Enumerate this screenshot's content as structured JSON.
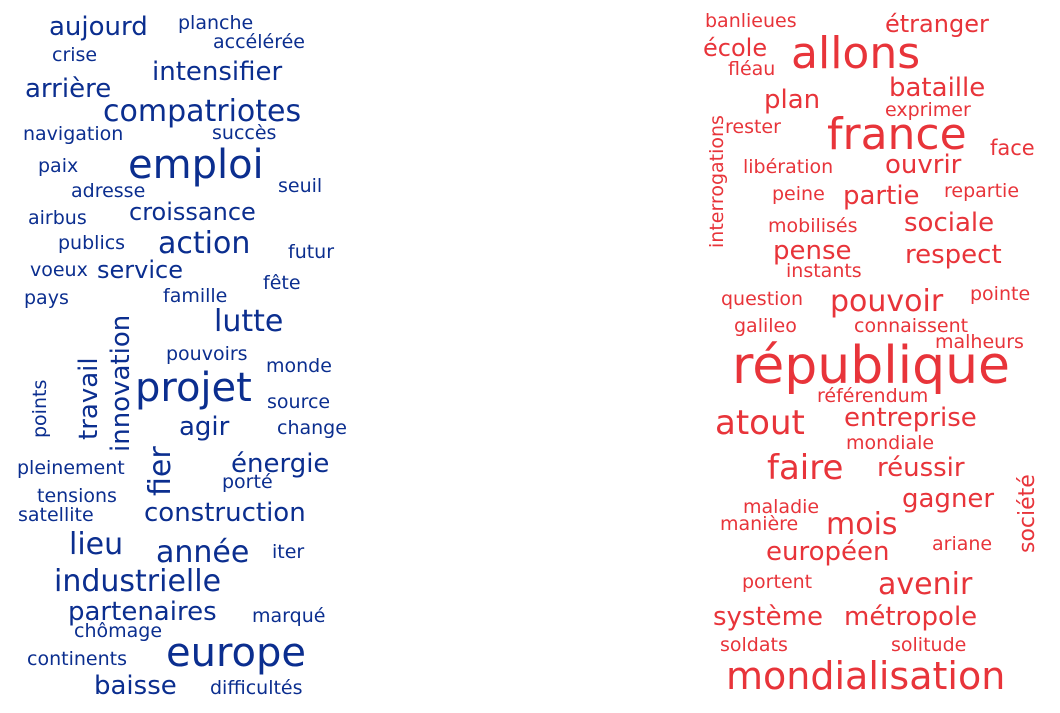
{
  "colors": {
    "left": "#0b2e8f",
    "right": "#e8343a"
  },
  "left_words": [
    {
      "text": "aujourd"
    },
    {
      "text": "planche"
    },
    {
      "text": "accélérée"
    },
    {
      "text": "crise"
    },
    {
      "text": "intensifier"
    },
    {
      "text": "arrière"
    },
    {
      "text": "compatriotes"
    },
    {
      "text": "navigation"
    },
    {
      "text": "succès"
    },
    {
      "text": "paix"
    },
    {
      "text": "emploi"
    },
    {
      "text": "adresse"
    },
    {
      "text": "seuil"
    },
    {
      "text": "airbus"
    },
    {
      "text": "croissance"
    },
    {
      "text": "publics"
    },
    {
      "text": "action"
    },
    {
      "text": "futur"
    },
    {
      "text": "voeux"
    },
    {
      "text": "service"
    },
    {
      "text": "fête"
    },
    {
      "text": "pays"
    },
    {
      "text": "famille"
    },
    {
      "text": "lutte"
    },
    {
      "text": "innovation"
    },
    {
      "text": "travail"
    },
    {
      "text": "points"
    },
    {
      "text": "pouvoirs"
    },
    {
      "text": "monde"
    },
    {
      "text": "projet"
    },
    {
      "text": "source"
    },
    {
      "text": "agir"
    },
    {
      "text": "change"
    },
    {
      "text": "fier"
    },
    {
      "text": "énergie"
    },
    {
      "text": "pleinement"
    },
    {
      "text": "porté"
    },
    {
      "text": "tensions"
    },
    {
      "text": "satellite"
    },
    {
      "text": "construction"
    },
    {
      "text": "lieu"
    },
    {
      "text": "année"
    },
    {
      "text": "iter"
    },
    {
      "text": "industrielle"
    },
    {
      "text": "partenaires"
    },
    {
      "text": "marqué"
    },
    {
      "text": "chômage"
    },
    {
      "text": "continents"
    },
    {
      "text": "europe"
    },
    {
      "text": "baisse"
    },
    {
      "text": "difficultés"
    }
  ],
  "right_words": [
    {
      "text": "banlieues"
    },
    {
      "text": "étranger"
    },
    {
      "text": "école"
    },
    {
      "text": "allons"
    },
    {
      "text": "fléau"
    },
    {
      "text": "bataille"
    },
    {
      "text": "plan"
    },
    {
      "text": "interrogations"
    },
    {
      "text": "exprimer"
    },
    {
      "text": "rester"
    },
    {
      "text": "france"
    },
    {
      "text": "face"
    },
    {
      "text": "libération"
    },
    {
      "text": "ouvrir"
    },
    {
      "text": "peine"
    },
    {
      "text": "partie"
    },
    {
      "text": "repartie"
    },
    {
      "text": "mobilisés"
    },
    {
      "text": "sociale"
    },
    {
      "text": "pense"
    },
    {
      "text": "respect"
    },
    {
      "text": "instants"
    },
    {
      "text": "question"
    },
    {
      "text": "pouvoir"
    },
    {
      "text": "pointe"
    },
    {
      "text": "galileo"
    },
    {
      "text": "connaissent"
    },
    {
      "text": "malheurs"
    },
    {
      "text": "république"
    },
    {
      "text": "référendum"
    },
    {
      "text": "atout"
    },
    {
      "text": "entreprise"
    },
    {
      "text": "mondiale"
    },
    {
      "text": "société"
    },
    {
      "text": "faire"
    },
    {
      "text": "réussir"
    },
    {
      "text": "gagner"
    },
    {
      "text": "maladie"
    },
    {
      "text": "manière"
    },
    {
      "text": "mois"
    },
    {
      "text": "européen"
    },
    {
      "text": "ariane"
    },
    {
      "text": "portent"
    },
    {
      "text": "avenir"
    },
    {
      "text": "système"
    },
    {
      "text": "métropole"
    },
    {
      "text": "soldats"
    },
    {
      "text": "solitude"
    },
    {
      "text": "mondialisation"
    }
  ]
}
